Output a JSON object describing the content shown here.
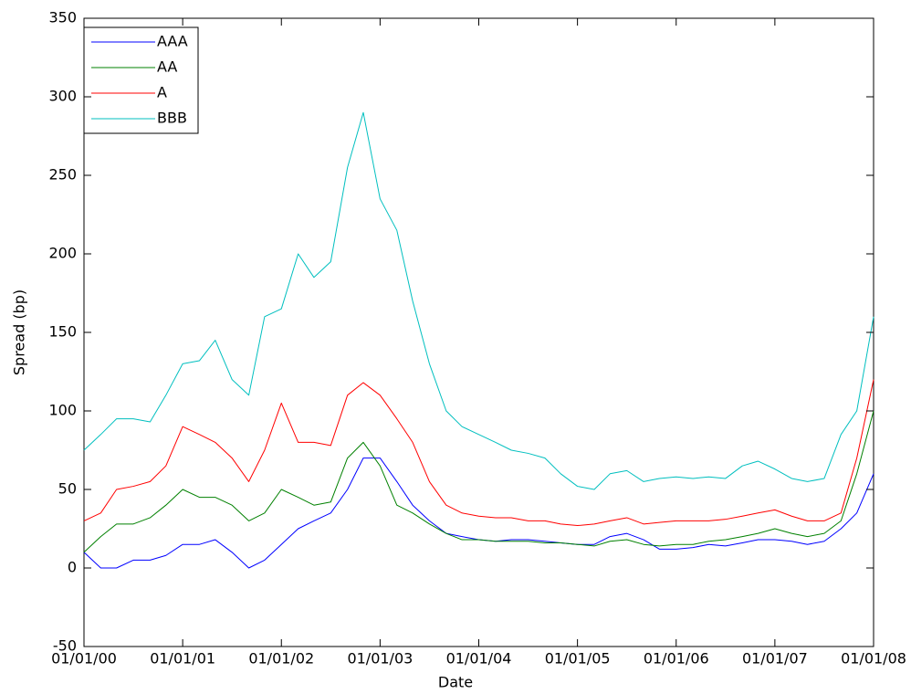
{
  "chart_data": {
    "type": "line",
    "xlabel": "Date",
    "ylabel": "Spread (bp)",
    "xlim": [
      2000,
      2008
    ],
    "ylim": [
      -50,
      350
    ],
    "xticks": [
      {
        "value": 2000,
        "label": "01/01/00"
      },
      {
        "value": 2001,
        "label": "01/01/01"
      },
      {
        "value": 2002,
        "label": "01/01/02"
      },
      {
        "value": 2003,
        "label": "01/01/03"
      },
      {
        "value": 2004,
        "label": "01/01/04"
      },
      {
        "value": 2005,
        "label": "01/01/05"
      },
      {
        "value": 2006,
        "label": "01/01/06"
      },
      {
        "value": 2007,
        "label": "01/01/07"
      },
      {
        "value": 2008,
        "label": "01/01/08"
      }
    ],
    "yticks": [
      -50,
      0,
      50,
      100,
      150,
      200,
      250,
      300,
      350
    ],
    "legend": "top-left",
    "x": [
      2000,
      2000.17,
      2000.33,
      2000.5,
      2000.67,
      2000.83,
      2001,
      2001.17,
      2001.33,
      2001.5,
      2001.67,
      2001.83,
      2002,
      2002.17,
      2002.33,
      2002.5,
      2002.67,
      2002.83,
      2003,
      2003.17,
      2003.33,
      2003.5,
      2003.67,
      2003.83,
      2004,
      2004.17,
      2004.33,
      2004.5,
      2004.67,
      2004.83,
      2005,
      2005.17,
      2005.33,
      2005.5,
      2005.67,
      2005.83,
      2006,
      2006.17,
      2006.33,
      2006.5,
      2006.67,
      2006.83,
      2007,
      2007.17,
      2007.33,
      2007.5,
      2007.67,
      2007.83,
      2008
    ],
    "series": [
      {
        "name": "AAA",
        "color": "#0000ff",
        "values": [
          10,
          0,
          0,
          5,
          5,
          8,
          15,
          15,
          18,
          10,
          0,
          5,
          15,
          25,
          30,
          35,
          50,
          70,
          70,
          55,
          40,
          30,
          22,
          20,
          18,
          17,
          18,
          18,
          17,
          16,
          15,
          15,
          20,
          22,
          18,
          12,
          12,
          13,
          15,
          14,
          16,
          18,
          18,
          17,
          15,
          17,
          25,
          35,
          60
        ]
      },
      {
        "name": "AA",
        "color": "#008000",
        "values": [
          10,
          20,
          28,
          28,
          32,
          40,
          50,
          45,
          45,
          40,
          30,
          35,
          50,
          45,
          40,
          42,
          70,
          80,
          65,
          40,
          35,
          28,
          22,
          18,
          18,
          17,
          17,
          17,
          16,
          16,
          15,
          14,
          17,
          18,
          15,
          14,
          15,
          15,
          17,
          18,
          20,
          22,
          25,
          22,
          20,
          22,
          30,
          60,
          100
        ]
      },
      {
        "name": "A",
        "color": "#ff0000",
        "values": [
          30,
          35,
          50,
          52,
          55,
          65,
          90,
          85,
          80,
          70,
          55,
          75,
          105,
          80,
          80,
          78,
          110,
          118,
          110,
          95,
          80,
          55,
          40,
          35,
          33,
          32,
          32,
          30,
          30,
          28,
          27,
          28,
          30,
          32,
          28,
          29,
          30,
          30,
          30,
          31,
          33,
          35,
          37,
          33,
          30,
          30,
          35,
          70,
          120
        ]
      },
      {
        "name": "BBB",
        "color": "#00bfbf",
        "values": [
          75,
          85,
          95,
          95,
          93,
          110,
          130,
          132,
          145,
          120,
          110,
          160,
          165,
          200,
          185,
          195,
          255,
          290,
          235,
          215,
          170,
          130,
          100,
          90,
          85,
          80,
          75,
          73,
          70,
          60,
          52,
          50,
          60,
          62,
          55,
          57,
          58,
          57,
          58,
          57,
          65,
          68,
          63,
          57,
          55,
          57,
          85,
          100,
          160
        ]
      }
    ]
  }
}
